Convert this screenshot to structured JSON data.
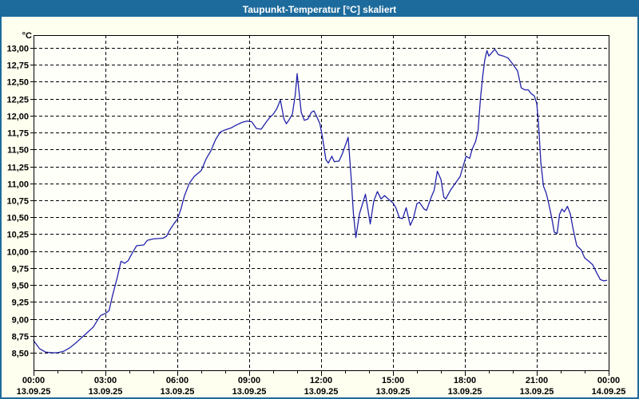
{
  "window": {
    "title": "Taupunkt-Temperatur [°C] skaliert",
    "colors": {
      "titlebar_bg": "#1d6b9c",
      "titlebar_text": "#ffffff",
      "window_bg": "#fffff0",
      "plot_bg": "#fffffa",
      "border": "#1d6b9c",
      "grid": "#000000",
      "line": "#2222aa"
    }
  },
  "chart_data": {
    "type": "line",
    "title": "Taupunkt-Temperatur [°C] skaliert",
    "xlabel": "",
    "ylabel": "°C",
    "ylim": [
      8.5,
      13.0
    ],
    "ytick_step": 0.25,
    "ytick_labels_top_down": [
      "13,00",
      "12,75",
      "12,50",
      "12,25",
      "12,00",
      "11,75",
      "11,50",
      "11,25",
      "11,00",
      "10,75",
      "10,50",
      "10,25",
      "10,00",
      "9,75",
      "9,50",
      "9,25",
      "9,00",
      "8,75",
      "8,50"
    ],
    "x_hours_range": [
      0,
      24
    ],
    "x_minor_tick_every_hours": 1,
    "x_major_ticks": [
      {
        "hour": 0,
        "time": "00:00",
        "date": "13.09.25"
      },
      {
        "hour": 3,
        "time": "03:00",
        "date": "13.09.25"
      },
      {
        "hour": 6,
        "time": "06:00",
        "date": "13.09.25"
      },
      {
        "hour": 9,
        "time": "09:00",
        "date": "13.09.25"
      },
      {
        "hour": 12,
        "time": "12:00",
        "date": "13.09.25"
      },
      {
        "hour": 15,
        "time": "15:00",
        "date": "13.09.25"
      },
      {
        "hour": 18,
        "time": "18:00",
        "date": "13.09.25"
      },
      {
        "hour": 21,
        "time": "21:00",
        "date": "13.09.25"
      },
      {
        "hour": 24,
        "time": "00:00",
        "date": "14.09.25"
      }
    ],
    "grid": "dashed",
    "legend": "none",
    "series": [
      {
        "name": "Taupunkt-Temperatur",
        "points": [
          [
            0,
            8.68
          ],
          [
            0.25,
            8.56
          ],
          [
            0.5,
            8.51
          ],
          [
            0.75,
            8.5
          ],
          [
            1,
            8.5
          ],
          [
            1.25,
            8.52
          ],
          [
            1.5,
            8.57
          ],
          [
            1.75,
            8.64
          ],
          [
            2,
            8.72
          ],
          [
            2.25,
            8.8
          ],
          [
            2.5,
            8.88
          ],
          [
            2.65,
            8.97
          ],
          [
            2.8,
            9.05
          ],
          [
            3,
            9.08
          ],
          [
            3.15,
            9.12
          ],
          [
            3.3,
            9.35
          ],
          [
            3.5,
            9.62
          ],
          [
            3.65,
            9.85
          ],
          [
            3.8,
            9.82
          ],
          [
            3.95,
            9.86
          ],
          [
            4.1,
            9.96
          ],
          [
            4.3,
            10.08
          ],
          [
            4.6,
            10.09
          ],
          [
            4.75,
            10.16
          ],
          [
            5,
            10.18
          ],
          [
            5.4,
            10.19
          ],
          [
            5.55,
            10.22
          ],
          [
            5.7,
            10.32
          ],
          [
            5.85,
            10.4
          ],
          [
            6,
            10.47
          ],
          [
            6.15,
            10.62
          ],
          [
            6.3,
            10.82
          ],
          [
            6.5,
            11.0
          ],
          [
            6.7,
            11.1
          ],
          [
            6.9,
            11.16
          ],
          [
            7,
            11.19
          ],
          [
            7.2,
            11.36
          ],
          [
            7.4,
            11.48
          ],
          [
            7.6,
            11.65
          ],
          [
            7.8,
            11.76
          ],
          [
            8,
            11.79
          ],
          [
            8.25,
            11.82
          ],
          [
            8.45,
            11.86
          ],
          [
            8.7,
            11.9
          ],
          [
            8.9,
            11.92
          ],
          [
            9.1,
            11.91
          ],
          [
            9.3,
            11.81
          ],
          [
            9.5,
            11.8
          ],
          [
            9.7,
            11.9
          ],
          [
            9.85,
            11.97
          ],
          [
            10,
            12.02
          ],
          [
            10.15,
            12.1
          ],
          [
            10.3,
            12.23
          ],
          [
            10.45,
            11.95
          ],
          [
            10.55,
            11.88
          ],
          [
            10.65,
            11.93
          ],
          [
            10.8,
            12.02
          ],
          [
            10.92,
            12.3
          ],
          [
            11,
            12.62
          ],
          [
            11.08,
            12.35
          ],
          [
            11.17,
            12.05
          ],
          [
            11.3,
            11.93
          ],
          [
            11.45,
            11.95
          ],
          [
            11.6,
            12.05
          ],
          [
            11.7,
            12.07
          ],
          [
            11.8,
            12.0
          ],
          [
            11.95,
            11.88
          ],
          [
            12.05,
            11.7
          ],
          [
            12.2,
            11.35
          ],
          [
            12.3,
            11.3
          ],
          [
            12.45,
            11.4
          ],
          [
            12.55,
            11.32
          ],
          [
            12.75,
            11.33
          ],
          [
            12.9,
            11.45
          ],
          [
            13,
            11.55
          ],
          [
            13.13,
            11.68
          ],
          [
            13.25,
            11.1
          ],
          [
            13.35,
            10.55
          ],
          [
            13.45,
            10.2
          ],
          [
            13.6,
            10.55
          ],
          [
            13.85,
            10.84
          ],
          [
            14.05,
            10.4
          ],
          [
            14.2,
            10.74
          ],
          [
            14.35,
            10.88
          ],
          [
            14.5,
            10.77
          ],
          [
            14.65,
            10.82
          ],
          [
            14.8,
            10.77
          ],
          [
            15,
            10.71
          ],
          [
            15.12,
            10.64
          ],
          [
            15.27,
            10.49
          ],
          [
            15.4,
            10.48
          ],
          [
            15.55,
            10.64
          ],
          [
            15.72,
            10.38
          ],
          [
            15.85,
            10.48
          ],
          [
            16,
            10.7
          ],
          [
            16.1,
            10.72
          ],
          [
            16.3,
            10.62
          ],
          [
            16.4,
            10.6
          ],
          [
            16.6,
            10.8
          ],
          [
            16.72,
            10.9
          ],
          [
            16.85,
            11.18
          ],
          [
            17,
            11.06
          ],
          [
            17.12,
            10.8
          ],
          [
            17.2,
            10.77
          ],
          [
            17.4,
            10.9
          ],
          [
            17.6,
            11.0
          ],
          [
            17.8,
            11.1
          ],
          [
            17.95,
            11.28
          ],
          [
            18.05,
            11.4
          ],
          [
            18.2,
            11.37
          ],
          [
            18.3,
            11.5
          ],
          [
            18.45,
            11.62
          ],
          [
            18.55,
            11.78
          ],
          [
            18.65,
            12.25
          ],
          [
            18.75,
            12.6
          ],
          [
            18.83,
            12.82
          ],
          [
            18.92,
            12.96
          ],
          [
            19,
            12.88
          ],
          [
            19.1,
            12.92
          ],
          [
            19.25,
            12.98
          ],
          [
            19.4,
            12.9
          ],
          [
            19.6,
            12.88
          ],
          [
            19.8,
            12.85
          ],
          [
            20,
            12.76
          ],
          [
            20.2,
            12.66
          ],
          [
            20.35,
            12.41
          ],
          [
            20.5,
            12.38
          ],
          [
            20.65,
            12.38
          ],
          [
            20.75,
            12.33
          ],
          [
            20.9,
            12.29
          ],
          [
            21,
            12.18
          ],
          [
            21.07,
            11.9
          ],
          [
            21.17,
            11.31
          ],
          [
            21.28,
            10.96
          ],
          [
            21.4,
            10.85
          ],
          [
            21.5,
            10.7
          ],
          [
            21.62,
            10.5
          ],
          [
            21.73,
            10.28
          ],
          [
            21.85,
            10.26
          ],
          [
            21.95,
            10.54
          ],
          [
            22.05,
            10.62
          ],
          [
            22.15,
            10.58
          ],
          [
            22.28,
            10.66
          ],
          [
            22.4,
            10.55
          ],
          [
            22.52,
            10.32
          ],
          [
            22.67,
            10.08
          ],
          [
            22.85,
            10.02
          ],
          [
            23,
            9.9
          ],
          [
            23.17,
            9.85
          ],
          [
            23.33,
            9.8
          ],
          [
            23.5,
            9.68
          ],
          [
            23.65,
            9.58
          ],
          [
            23.8,
            9.56
          ],
          [
            23.92,
            9.57
          ]
        ]
      }
    ]
  }
}
